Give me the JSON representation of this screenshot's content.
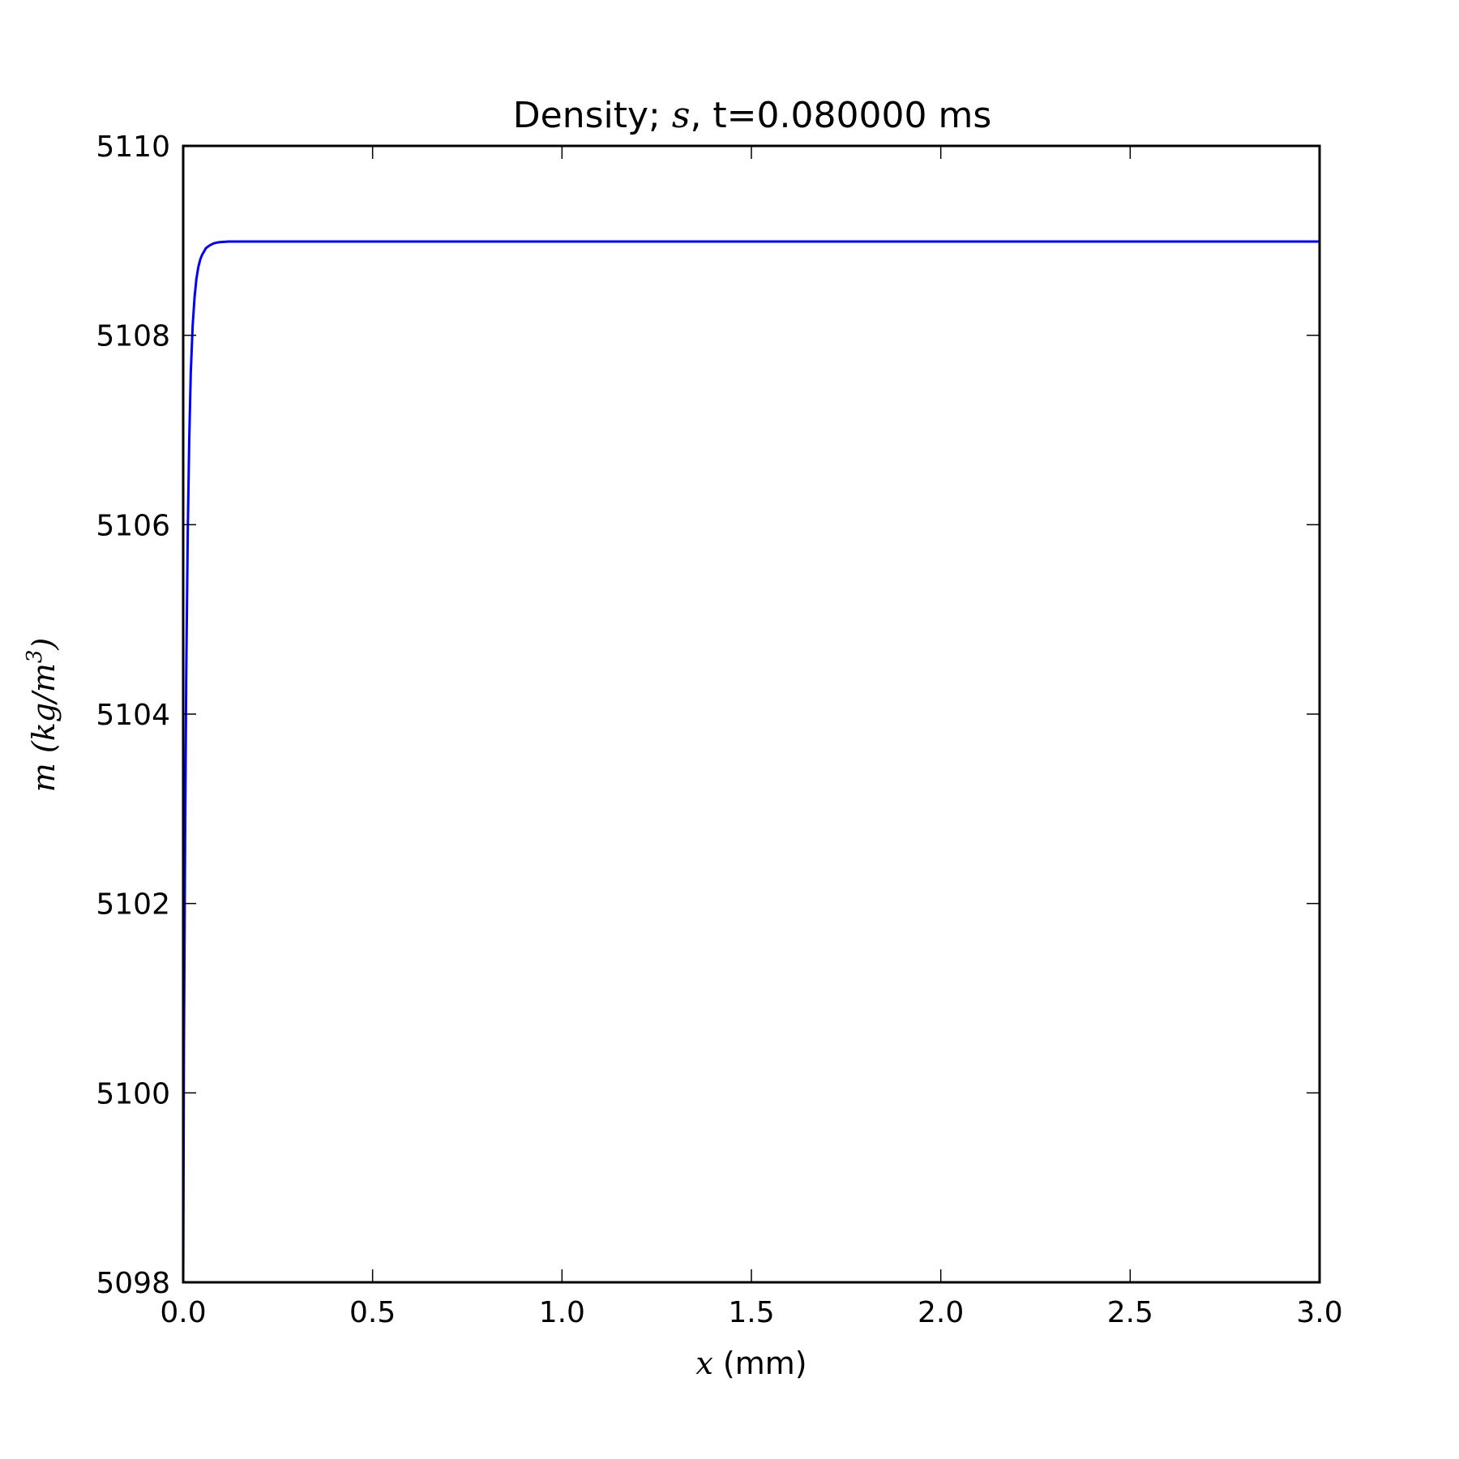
{
  "chart_data": {
    "type": "line",
    "title": {
      "prefix": "Density; ",
      "math": "s",
      "suffix": ", t=0.080000 ms"
    },
    "xlabel": {
      "math": "x",
      "text": " (mm)"
    },
    "ylabel": {
      "math": "m",
      "units": "(kg/m",
      "exp": "3",
      "close": ")"
    },
    "xlim": [
      0.0,
      3.0
    ],
    "ylim": [
      5098,
      5110
    ],
    "x_ticks": [
      0.0,
      0.5,
      1.0,
      1.5,
      2.0,
      2.5,
      3.0
    ],
    "x_tick_labels": [
      "0.0",
      "0.5",
      "1.0",
      "1.5",
      "2.0",
      "2.5",
      "3.0"
    ],
    "y_ticks": [
      5098,
      5100,
      5102,
      5104,
      5106,
      5108,
      5110
    ],
    "y_tick_labels": [
      "5098",
      "5100",
      "5102",
      "5104",
      "5106",
      "5108",
      "5110"
    ],
    "grid": false,
    "series": [
      {
        "color": "#0000ff",
        "x": [
          0.0,
          0.002,
          0.005,
          0.008,
          0.012,
          0.016,
          0.02,
          0.025,
          0.03,
          0.035,
          0.04,
          0.045,
          0.05,
          0.06,
          0.07,
          0.08,
          0.09,
          0.1,
          0.12,
          0.15,
          0.2,
          0.5,
          1.0,
          1.5,
          2.0,
          2.5,
          3.0
        ],
        "y": [
          5098.0,
          5100.5,
          5102.6,
          5104.4,
          5105.9,
          5106.9,
          5107.6,
          5108.1,
          5108.4,
          5108.6,
          5108.72,
          5108.8,
          5108.85,
          5108.92,
          5108.95,
          5108.97,
          5108.98,
          5108.985,
          5108.99,
          5108.99,
          5108.99,
          5108.99,
          5108.99,
          5108.99,
          5108.99,
          5108.99,
          5108.99
        ]
      }
    ]
  }
}
